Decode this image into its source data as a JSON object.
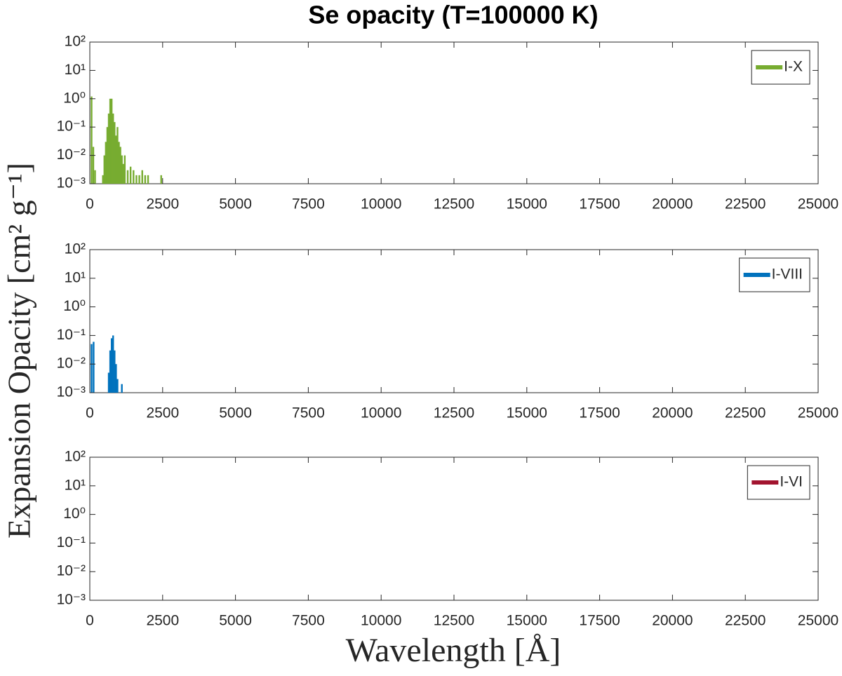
{
  "title": "Se opacity (T=100000 K)",
  "ylabel": "Expansion Opacity [cm² g⁻¹]",
  "xlabel": "Wavelength [Å]",
  "chart_data": [
    {
      "type": "bar",
      "legend": "northeast",
      "yscale": "log",
      "grid": false,
      "x": [
        60,
        120,
        180,
        450,
        500,
        550,
        600,
        650,
        700,
        750,
        800,
        850,
        900,
        950,
        1000,
        1050,
        1100,
        1150,
        1200,
        1300,
        1400,
        1500,
        1600,
        1700,
        1800,
        1900,
        2000,
        2450
      ],
      "series": [
        {
          "name": "I-X",
          "color": "#77ac30",
          "values": [
            1.2,
            0.02,
            0.003,
            0.002,
            0.01,
            0.03,
            0.1,
            0.3,
            1.0,
            1.0,
            0.3,
            0.15,
            0.05,
            0.1,
            0.03,
            0.02,
            0.01,
            0.005,
            0.01,
            0.003,
            0.004,
            0.003,
            0.002,
            0.002,
            0.003,
            0.002,
            0.002,
            0.002
          ]
        }
      ],
      "xlim": [
        0,
        25000
      ],
      "xticks": [
        0,
        2500,
        5000,
        7500,
        10000,
        12500,
        15000,
        17500,
        20000,
        22500,
        25000
      ],
      "ylim": [
        0.001,
        100
      ],
      "yticks": [
        {
          "value": 0.001,
          "label": "10⁻³"
        },
        {
          "value": 0.01,
          "label": "10⁻²"
        },
        {
          "value": 0.1,
          "label": "10⁻¹"
        },
        {
          "value": 1,
          "label": "10⁰"
        },
        {
          "value": 10,
          "label": "10¹"
        },
        {
          "value": 100,
          "label": "10²"
        }
      ]
    },
    {
      "type": "bar",
      "legend": "northeast",
      "yscale": "log",
      "grid": false,
      "x": [
        60,
        130,
        650,
        700,
        750,
        800,
        850,
        900,
        950,
        1100
      ],
      "series": [
        {
          "name": "I-VIII",
          "color": "#0072bd",
          "values": [
            0.05,
            0.06,
            0.005,
            0.03,
            0.08,
            0.1,
            0.03,
            0.01,
            0.003,
            0.002
          ]
        }
      ],
      "xlim": [
        0,
        25000
      ],
      "xticks": [
        0,
        2500,
        5000,
        7500,
        10000,
        12500,
        15000,
        17500,
        20000,
        22500,
        25000
      ],
      "ylim": [
        0.001,
        100
      ],
      "yticks": [
        {
          "value": 0.001,
          "label": "10⁻³"
        },
        {
          "value": 0.01,
          "label": "10⁻²"
        },
        {
          "value": 0.1,
          "label": "10⁻¹"
        },
        {
          "value": 1,
          "label": "10⁰"
        },
        {
          "value": 10,
          "label": "10¹"
        },
        {
          "value": 100,
          "label": "10²"
        }
      ]
    },
    {
      "type": "bar",
      "legend": "northeast",
      "yscale": "log",
      "grid": false,
      "x": [],
      "series": [
        {
          "name": "I-VI",
          "color": "#a2142f",
          "values": []
        }
      ],
      "xlim": [
        0,
        25000
      ],
      "xticks": [
        0,
        2500,
        5000,
        7500,
        10000,
        12500,
        15000,
        17500,
        20000,
        22500,
        25000
      ],
      "ylim": [
        0.001,
        100
      ],
      "yticks": [
        {
          "value": 0.001,
          "label": "10⁻³"
        },
        {
          "value": 0.01,
          "label": "10⁻²"
        },
        {
          "value": 0.1,
          "label": "10⁻¹"
        },
        {
          "value": 1,
          "label": "10⁰"
        },
        {
          "value": 10,
          "label": "10¹"
        },
        {
          "value": 100,
          "label": "10²"
        }
      ]
    }
  ]
}
